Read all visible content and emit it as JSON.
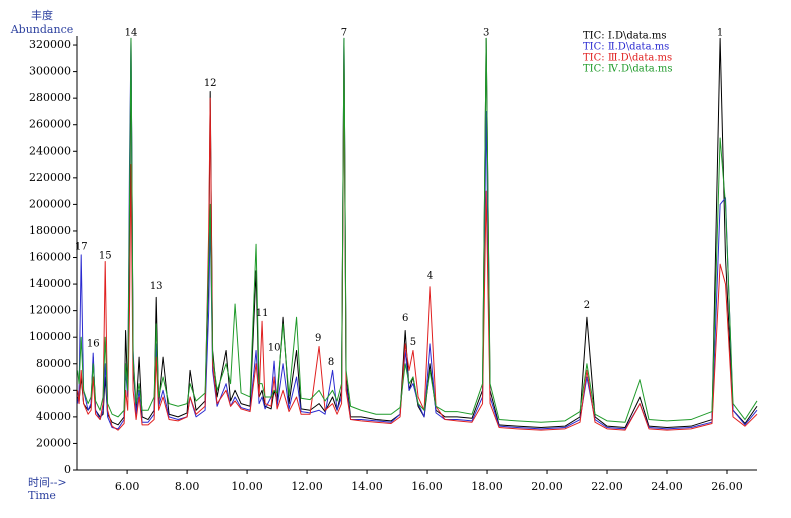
{
  "chart_data": {
    "type": "line",
    "y_label": "丰度",
    "y_label_en": "Abundance",
    "x_label": "时间-->",
    "x_label_en": "Time",
    "xlim": [
      4.33,
      27.0
    ],
    "ylim": [
      0,
      325000
    ],
    "xticks": [
      {
        "value": 6,
        "label": "6.00"
      },
      {
        "value": 8,
        "label": "8.00"
      },
      {
        "value": 10,
        "label": "10.00"
      },
      {
        "value": 12,
        "label": "12.00"
      },
      {
        "value": 14,
        "label": "14.00"
      },
      {
        "value": 16,
        "label": "16.00"
      },
      {
        "value": 18,
        "label": "18.00"
      },
      {
        "value": 20,
        "label": "20.00"
      },
      {
        "value": 22,
        "label": "22.00"
      },
      {
        "value": 24,
        "label": "24.00"
      },
      {
        "value": 26,
        "label": "26.00"
      }
    ],
    "yticks": [
      0,
      20000,
      40000,
      60000,
      80000,
      100000,
      120000,
      140000,
      160000,
      180000,
      200000,
      220000,
      240000,
      260000,
      280000,
      300000,
      320000
    ],
    "x": [
      4.35,
      4.4,
      4.47,
      4.55,
      4.7,
      4.8,
      4.87,
      4.95,
      5.1,
      5.2,
      5.27,
      5.35,
      5.5,
      5.7,
      5.9,
      5.95,
      6.02,
      6.08,
      6.13,
      6.2,
      6.3,
      6.4,
      6.5,
      6.7,
      6.9,
      6.97,
      7.05,
      7.2,
      7.4,
      7.7,
      8.0,
      8.1,
      8.3,
      8.6,
      8.72,
      8.77,
      8.85,
      9.0,
      9.3,
      9.45,
      9.6,
      9.8,
      10.1,
      10.3,
      10.4,
      10.5,
      10.6,
      10.8,
      10.9,
      11.0,
      11.2,
      11.4,
      11.65,
      11.8,
      12.1,
      12.4,
      12.6,
      12.85,
      13.0,
      13.15,
      13.23,
      13.3,
      13.45,
      13.8,
      14.3,
      14.8,
      15.1,
      15.27,
      15.4,
      15.53,
      15.7,
      15.9,
      16.1,
      16.3,
      16.6,
      17.0,
      17.5,
      17.85,
      17.97,
      18.1,
      18.4,
      19.0,
      19.8,
      20.6,
      21.1,
      21.33,
      21.6,
      22.0,
      22.6,
      23.1,
      23.4,
      24.0,
      24.8,
      25.5,
      25.77,
      25.95,
      26.2,
      26.6,
      27.0
    ],
    "series": [
      {
        "name": "TIC: Ⅰ.D\\data.ms",
        "color": "#000000",
        "values": [
          55000,
          52000,
          70000,
          50000,
          45000,
          48000,
          85000,
          45000,
          40000,
          42000,
          70000,
          42000,
          36000,
          34000,
          40000,
          105000,
          60000,
          150000,
          325000,
          80000,
          45000,
          85000,
          40000,
          38000,
          45000,
          130000,
          50000,
          85000,
          42000,
          40000,
          43000,
          75000,
          45000,
          52000,
          150000,
          285000,
          90000,
          55000,
          90000,
          52000,
          60000,
          50000,
          48000,
          150000,
          55000,
          60000,
          48000,
          46000,
          60000,
          52000,
          115000,
          50000,
          90000,
          46000,
          45000,
          50000,
          44000,
          55000,
          45000,
          60000,
          325000,
          70000,
          40000,
          40000,
          38000,
          37000,
          42000,
          105000,
          60000,
          70000,
          48000,
          40000,
          80000,
          45000,
          40000,
          40000,
          39000,
          60000,
          325000,
          60000,
          34000,
          33000,
          32000,
          33000,
          40000,
          115000,
          40000,
          33000,
          32000,
          55000,
          33000,
          32000,
          33000,
          38000,
          325000,
          160000,
          45000,
          35000,
          48000
        ]
      },
      {
        "name": "TIC: Ⅱ.D\\data.ms",
        "color": "#2a2ad0",
        "values": [
          50000,
          60000,
          162000,
          60000,
          45000,
          50000,
          88000,
          45000,
          38000,
          45000,
          80000,
          40000,
          32000,
          31000,
          38000,
          75000,
          55000,
          230000,
          325000,
          90000,
          42000,
          60000,
          36000,
          36000,
          42000,
          95000,
          48000,
          60000,
          40000,
          38000,
          40000,
          55000,
          40000,
          45000,
          120000,
          190000,
          75000,
          48000,
          65000,
          48000,
          55000,
          47000,
          45000,
          90000,
          50000,
          55000,
          46000,
          55000,
          82000,
          48000,
          80000,
          46000,
          70000,
          44000,
          43000,
          45000,
          42000,
          75000,
          45000,
          55000,
          325000,
          65000,
          38000,
          38000,
          37000,
          36000,
          42000,
          90000,
          60000,
          65000,
          50000,
          40000,
          95000,
          43000,
          38000,
          38000,
          37000,
          55000,
          270000,
          55000,
          33000,
          32000,
          31000,
          32000,
          38000,
          70000,
          38000,
          32000,
          31000,
          50000,
          32000,
          31000,
          32000,
          36000,
          200000,
          205000,
          45000,
          34000,
          45000
        ]
      },
      {
        "name": "TIC: Ⅲ.D\\data.ms",
        "color": "#e02020",
        "values": [
          60000,
          50000,
          75000,
          50000,
          42000,
          45000,
          70000,
          42000,
          38000,
          50000,
          157000,
          45000,
          33000,
          30000,
          35000,
          60000,
          45000,
          120000,
          230000,
          60000,
          38000,
          55000,
          34000,
          34000,
          38000,
          85000,
          45000,
          55000,
          38000,
          37000,
          40000,
          55000,
          42000,
          48000,
          180000,
          280000,
          80000,
          50000,
          60000,
          48000,
          52000,
          46000,
          44000,
          80000,
          55000,
          112000,
          50000,
          48000,
          70000,
          46000,
          60000,
          44000,
          55000,
          42000,
          42000,
          93000,
          45000,
          50000,
          42000,
          50000,
          310000,
          60000,
          38000,
          37000,
          36000,
          35000,
          40000,
          95000,
          75000,
          90000,
          55000,
          45000,
          138000,
          48000,
          38000,
          37000,
          36000,
          50000,
          210000,
          50000,
          32000,
          31000,
          30000,
          31000,
          36000,
          75000,
          36000,
          31000,
          30000,
          50000,
          31000,
          30000,
          31000,
          35000,
          155000,
          140000,
          40000,
          33000,
          42000
        ]
      },
      {
        "name": "TIC: Ⅳ.D\\data.ms",
        "color": "#1f9a2a",
        "values": [
          75000,
          65000,
          100000,
          60000,
          50000,
          55000,
          80000,
          52000,
          45000,
          55000,
          100000,
          50000,
          42000,
          40000,
          45000,
          80000,
          60000,
          200000,
          325000,
          85000,
          50000,
          65000,
          45000,
          45000,
          55000,
          110000,
          55000,
          70000,
          50000,
          48000,
          50000,
          65000,
          52000,
          58000,
          160000,
          200000,
          85000,
          60000,
          80000,
          65000,
          125000,
          58000,
          55000,
          170000,
          65000,
          65000,
          55000,
          55000,
          60000,
          58000,
          110000,
          56000,
          115000,
          54000,
          53000,
          60000,
          52000,
          60000,
          52000,
          65000,
          325000,
          75000,
          48000,
          45000,
          42000,
          42000,
          47000,
          80000,
          65000,
          70000,
          50000,
          45000,
          75000,
          48000,
          44000,
          44000,
          42000,
          65000,
          325000,
          65000,
          38000,
          37000,
          36000,
          37000,
          44000,
          80000,
          42000,
          37000,
          36000,
          68000,
          38000,
          37000,
          38000,
          44000,
          250000,
          200000,
          50000,
          38000,
          52000
        ]
      }
    ],
    "annotations": [
      {
        "text": "17",
        "x": 4.47,
        "y": 168000
      },
      {
        "text": "16",
        "x": 4.87,
        "y": 95000
      },
      {
        "text": "15",
        "x": 5.27,
        "y": 161000
      },
      {
        "text": "14",
        "x": 6.13,
        "y": 329000
      },
      {
        "text": "13",
        "x": 6.97,
        "y": 138000
      },
      {
        "text": "12",
        "x": 8.77,
        "y": 291000
      },
      {
        "text": "11",
        "x": 10.5,
        "y": 118000
      },
      {
        "text": "10",
        "x": 10.9,
        "y": 92000
      },
      {
        "text": "9",
        "x": 12.37,
        "y": 99000
      },
      {
        "text": "8",
        "x": 12.8,
        "y": 81000
      },
      {
        "text": "7",
        "x": 13.23,
        "y": 329000
      },
      {
        "text": "6",
        "x": 15.27,
        "y": 114000
      },
      {
        "text": "5",
        "x": 15.53,
        "y": 96000
      },
      {
        "text": "4",
        "x": 16.1,
        "y": 146000
      },
      {
        "text": "3",
        "x": 17.97,
        "y": 329000
      },
      {
        "text": "2",
        "x": 21.33,
        "y": 124000
      },
      {
        "text": "1",
        "x": 25.77,
        "y": 329000
      }
    ]
  }
}
